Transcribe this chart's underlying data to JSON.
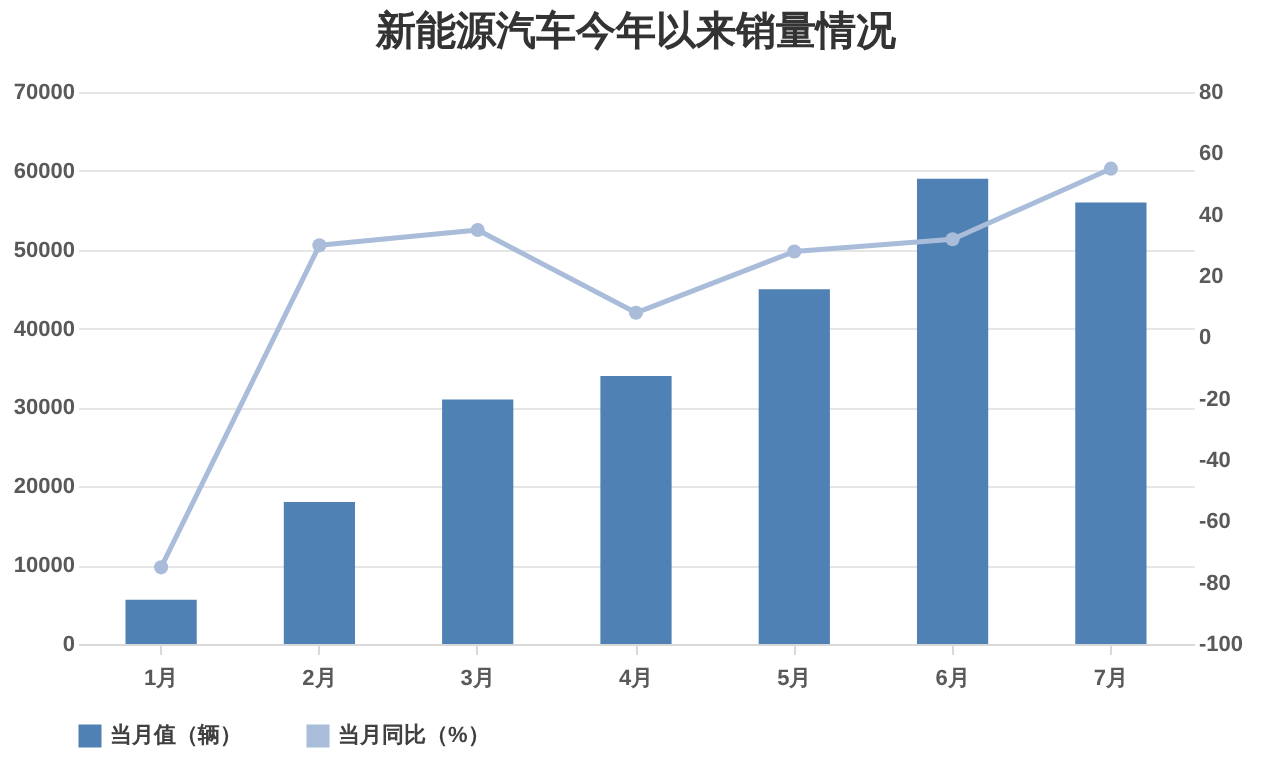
{
  "chart_data": {
    "type": "bar",
    "title": "新能源汽车今年以来销量情况",
    "categories": [
      "1月",
      "2月",
      "3月",
      "4月",
      "5月",
      "6月",
      "7月"
    ],
    "series": [
      {
        "name": "当月值（辆）",
        "color": "#4f81b4",
        "values": [
          5600,
          18000,
          31000,
          34000,
          45000,
          59000,
          56000
        ]
      },
      {
        "name": "当月同比（%）",
        "type": "line",
        "axis": "y2",
        "color": "#a9bcd9",
        "marker": "circle",
        "values": [
          -75,
          30,
          35,
          8,
          28,
          32,
          55
        ]
      }
    ],
    "ylim": [
      0,
      70000
    ],
    "yticks": [
      0,
      10000,
      20000,
      30000,
      40000,
      50000,
      60000,
      70000
    ],
    "y2lim": [
      -100,
      80
    ],
    "y2ticks": [
      -100,
      -80,
      -60,
      -40,
      -20,
      0,
      20,
      40,
      60,
      80
    ],
    "grid": "y",
    "legend": "bottom"
  }
}
